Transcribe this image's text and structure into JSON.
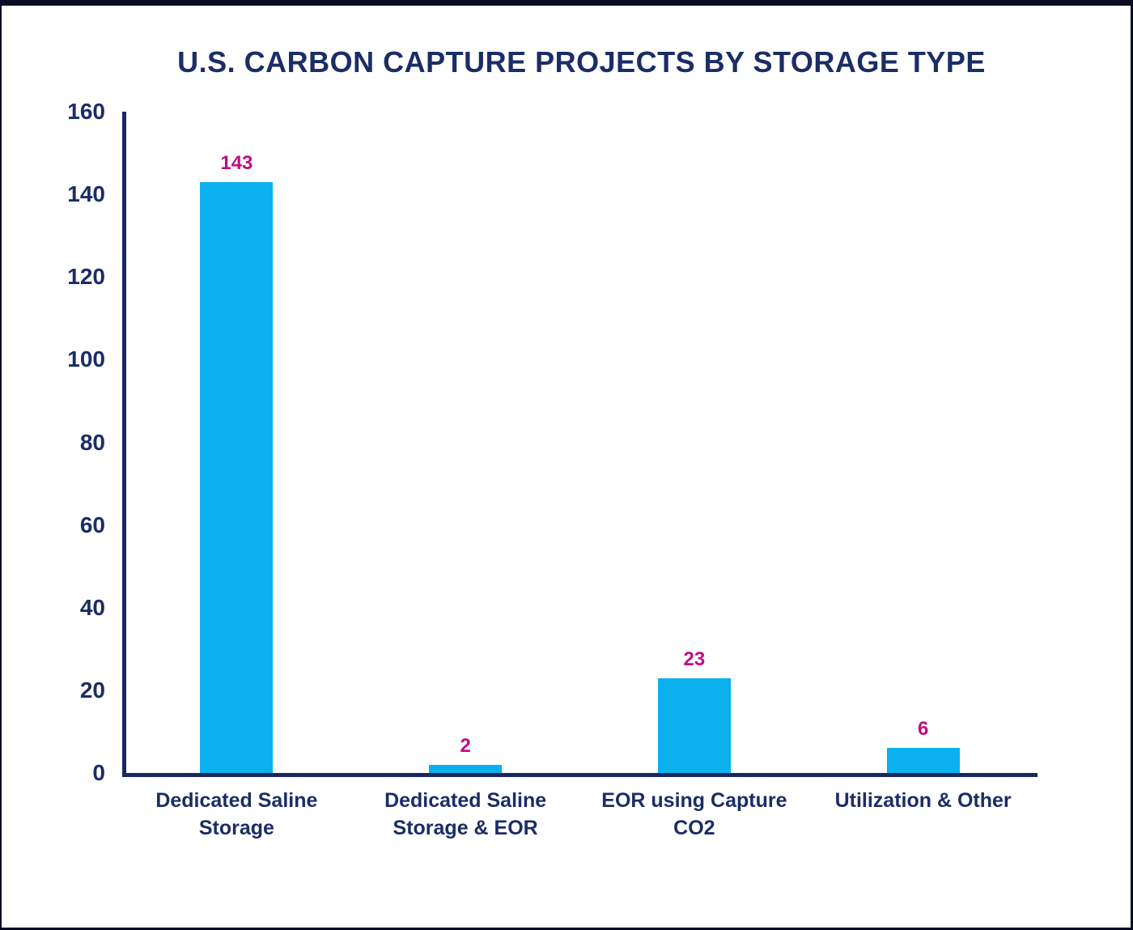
{
  "chart_data": {
    "type": "bar",
    "title": "U.S. CARBON CAPTURE PROJECTS BY STORAGE TYPE",
    "categories": [
      "Dedicated Saline\nStorage",
      "Dedicated Saline\nStorage & EOR",
      "EOR using Capture\nCO2",
      "Utilization & Other"
    ],
    "values": [
      143,
      2,
      23,
      6
    ],
    "value_labels": [
      "143",
      "2",
      "23",
      "6"
    ],
    "xlabel": "",
    "ylabel": "",
    "ylim": [
      0,
      160
    ],
    "yticks": [
      0,
      20,
      40,
      60,
      80,
      100,
      120,
      140,
      160
    ],
    "grid": false,
    "legend": "none",
    "colors": {
      "bar": "#0ab1ee",
      "value_label": "#c00d86",
      "title": "#1b2d66",
      "axis_line": "#18285e",
      "tick_label": "#1b2d66",
      "category_label": "#1b2d66",
      "frame_border": "#070c22",
      "background": "#ffffff"
    }
  }
}
